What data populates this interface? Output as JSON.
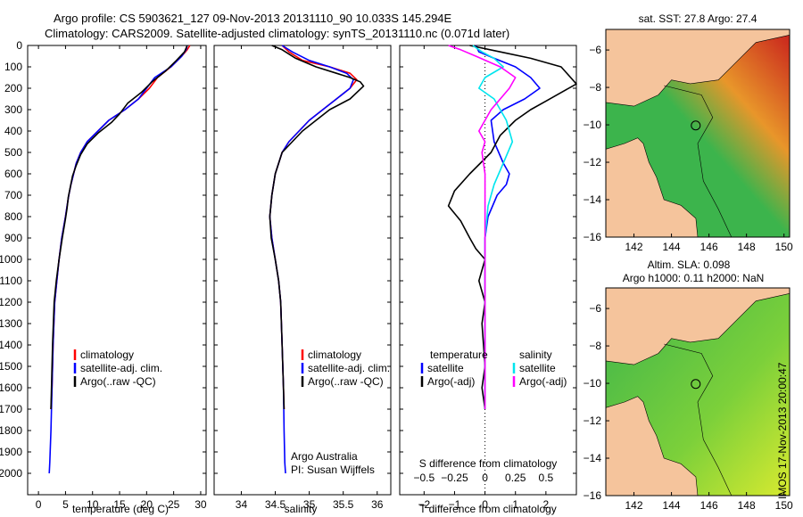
{
  "header": {
    "line1": "Argo profile: CS 5903621_127 09-Nov-2013 20131110_90 10.033S 145.294E",
    "line2": "Climatology: CARS2009. Satellite-adjusted climatology: synTS_20131110.nc (0.071d later)"
  },
  "side_label": "IMOS 17-Nov-2013 20:00:47",
  "colors": {
    "clim": "#ff0000",
    "sat": "#0000ff",
    "argo": "#000000",
    "s_sat": "#00e5ee",
    "s_argo": "#ff00ff",
    "land": "#f5c49c",
    "sea_hi": "#c8201c",
    "sea_mid": "#e8962a",
    "sea_lo": "#3cb44c",
    "sla_lo": "#3cb44c",
    "sla_hi": "#d8ea30"
  },
  "chart_data": [
    {
      "id": "temperature",
      "type": "line",
      "xlabel": "temperature (deg C)",
      "xlim": [
        -2,
        31
      ],
      "xticks": [
        0,
        5,
        10,
        15,
        20,
        25,
        30
      ],
      "xticklabels": [
        "0",
        "5",
        "10",
        "15",
        "20",
        "25",
        "30"
      ],
      "ylim": [
        0,
        2100
      ],
      "yticks": [
        0,
        100,
        200,
        300,
        400,
        500,
        600,
        700,
        800,
        900,
        1000,
        1100,
        1200,
        1300,
        1400,
        1500,
        1600,
        1700,
        1800,
        1900,
        2000
      ],
      "yticklabels": [
        "0",
        "100",
        "200",
        "300",
        "400",
        "500",
        "600",
        "700",
        "800",
        "900",
        "1000",
        "1100",
        "1200",
        "1300",
        "1400",
        "1500",
        "1600",
        "1700",
        "1800",
        "1900",
        "2000"
      ],
      "legend": [
        "climatology",
        "satellite-adj. clim.",
        "Argo(..raw -QC)"
      ],
      "series": [
        {
          "name": "climatology",
          "color": "#ff0000",
          "x": [
            28.0,
            27.5,
            26.5,
            24.5,
            22.0,
            20.5,
            18.5,
            16.0,
            13.0,
            11.0,
            9.0,
            7.8,
            7.0,
            6.5,
            6.0,
            5.6,
            5.3,
            5.0,
            4.3,
            3.8,
            3.4,
            3.0,
            2.7,
            2.5,
            2.3
          ],
          "y": [
            0,
            20,
            50,
            100,
            150,
            200,
            250,
            300,
            350,
            400,
            450,
            500,
            550,
            600,
            650,
            700,
            750,
            800,
            900,
            1000,
            1100,
            1200,
            1400,
            1600,
            1700
          ]
        },
        {
          "name": "satellite-adj. clim.",
          "color": "#0000ff",
          "x": [
            27.5,
            27.3,
            26.5,
            24.5,
            21.5,
            20.0,
            18.5,
            16.0,
            13.0,
            11.0,
            9.0,
            7.8,
            7.0,
            6.5,
            6.0,
            5.6,
            5.3,
            5.0,
            4.3,
            3.8,
            3.4,
            3.0,
            2.7,
            2.5,
            2.3,
            2.1,
            2.0
          ],
          "y": [
            0,
            20,
            50,
            100,
            150,
            200,
            250,
            300,
            350,
            400,
            450,
            500,
            550,
            600,
            650,
            700,
            750,
            800,
            900,
            1000,
            1100,
            1200,
            1400,
            1600,
            1800,
            1950,
            2000
          ]
        },
        {
          "name": "Argo(..raw -QC)",
          "color": "#000000",
          "x": [
            27.5,
            27.0,
            25.5,
            23.5,
            21.0,
            19.0,
            16.5,
            15.0,
            13.5,
            11.0,
            9.0,
            7.8,
            7.0,
            6.3,
            5.9,
            5.5,
            5.3,
            5.0,
            4.4,
            3.8,
            3.3,
            2.9,
            2.6,
            2.4,
            2.3
          ],
          "y": [
            0,
            30,
            70,
            120,
            170,
            220,
            270,
            320,
            360,
            410,
            460,
            510,
            560,
            610,
            660,
            710,
            760,
            810,
            900,
            1000,
            1100,
            1200,
            1400,
            1600,
            1700
          ]
        }
      ]
    },
    {
      "id": "salinity",
      "type": "line",
      "xlabel": "salinity",
      "xlim": [
        33.6,
        36.2
      ],
      "xticks": [
        34,
        34.5,
        35,
        35.5,
        36
      ],
      "xticklabels": [
        "34",
        "34.5",
        "35",
        "35.5",
        "36"
      ],
      "ylim": [
        0,
        2100
      ],
      "legend": [
        "climatology",
        "satellite-adj. clim.",
        "Argo(..raw -QC)"
      ],
      "annotation": [
        "Argo Australia",
        "PI: Susan Wijffels"
      ],
      "series": [
        {
          "name": "climatology",
          "color": "#ff0000",
          "x": [
            34.6,
            34.7,
            34.9,
            35.3,
            35.6,
            35.7,
            35.6,
            35.4,
            35.2,
            35.0,
            34.85,
            34.7,
            34.6,
            34.5,
            34.45,
            34.42,
            34.45,
            34.5,
            34.55,
            34.58,
            34.6,
            34.62,
            34.63
          ],
          "y": [
            0,
            30,
            70,
            100,
            130,
            160,
            200,
            250,
            300,
            350,
            400,
            450,
            500,
            600,
            700,
            800,
            900,
            1000,
            1100,
            1200,
            1400,
            1600,
            1700
          ]
        },
        {
          "name": "satellite-adj. clim.",
          "color": "#0000ff",
          "x": [
            34.6,
            34.75,
            35.0,
            35.3,
            35.55,
            35.65,
            35.6,
            35.4,
            35.2,
            35.0,
            34.85,
            34.7,
            34.6,
            34.5,
            34.45,
            34.42,
            34.45,
            34.5,
            34.55,
            34.58,
            34.6,
            34.62,
            34.63,
            34.64,
            34.65
          ],
          "y": [
            0,
            30,
            70,
            100,
            130,
            160,
            200,
            250,
            300,
            350,
            400,
            450,
            500,
            600,
            700,
            800,
            900,
            1000,
            1100,
            1200,
            1400,
            1600,
            1800,
            1950,
            2000
          ]
        },
        {
          "name": "Argo(..raw -QC)",
          "color": "#000000",
          "x": [
            34.45,
            34.6,
            34.8,
            35.1,
            35.4,
            35.6,
            35.75,
            35.8,
            35.6,
            35.3,
            35.1,
            34.9,
            34.75,
            34.6,
            34.5,
            34.45,
            34.42,
            34.44,
            34.5,
            34.55,
            34.58,
            34.6,
            34.62,
            34.63
          ],
          "y": [
            0,
            20,
            60,
            100,
            130,
            150,
            170,
            190,
            250,
            300,
            350,
            400,
            450,
            500,
            600,
            700,
            800,
            900,
            1000,
            1100,
            1200,
            1400,
            1600,
            1700
          ]
        }
      ]
    },
    {
      "id": "difference",
      "type": "line",
      "xlabel": "T difference from climatology",
      "xlabel_top": "S difference from climatology",
      "xlim": [
        -2.8,
        3.0
      ],
      "xticks": [
        -2,
        -1,
        0,
        1,
        2
      ],
      "xticklabels": [
        "−2",
        "−1",
        "0",
        "1",
        "2"
      ],
      "sticks": [
        -2,
        -1,
        0,
        1,
        2
      ],
      "sticklabels": [
        "−0.5",
        "−0.25",
        "0",
        "0.25",
        "0.5"
      ],
      "ylim": [
        0,
        2100
      ],
      "legend_temperature": {
        "title": "temperature",
        "items": [
          "satellite",
          "Argo(-adj)"
        ]
      },
      "legend_salinity": {
        "title": "salinity",
        "items": [
          "satellite",
          "Argo(-adj)"
        ]
      },
      "series": [
        {
          "name": "T satellite",
          "color": "#0000ff",
          "x": [
            -0.3,
            -0.2,
            0.3,
            1.0,
            1.5,
            1.8,
            1.3,
            0.6,
            0.2,
            0.3,
            0.6,
            0.8,
            0.7,
            0.4,
            0.1,
            0.0,
            0.0,
            0.0,
            0.0,
            0.0
          ],
          "y": [
            0,
            30,
            60,
            100,
            150,
            200,
            250,
            300,
            350,
            450,
            550,
            600,
            650,
            700,
            800,
            900,
            1000,
            1200,
            1400,
            1700
          ]
        },
        {
          "name": "T Argo(-adj)",
          "color": "#000000",
          "x": [
            -0.5,
            0.5,
            1.5,
            2.5,
            3.0,
            2.5,
            2.0,
            1.5,
            1.0,
            0.5,
            0.2,
            -0.5,
            -1.0,
            -1.2,
            -0.8,
            -0.5,
            -0.3,
            0.0,
            -0.2,
            0.0,
            -0.1,
            0.0,
            -0.1,
            0.0
          ],
          "y": [
            0,
            30,
            60,
            100,
            180,
            220,
            260,
            300,
            350,
            420,
            500,
            600,
            680,
            750,
            820,
            900,
            950,
            1000,
            1100,
            1200,
            1300,
            1500,
            1600,
            1700
          ]
        },
        {
          "name": "S satellite",
          "color": "#00e5ee",
          "x": [
            -0.4,
            -0.1,
            0.3,
            0.6,
            0.0,
            -0.2,
            0.3,
            0.5,
            0.7,
            0.9,
            0.6,
            0.3,
            0.1,
            0.0,
            0.0,
            0.0
          ],
          "y": [
            0,
            30,
            60,
            100,
            150,
            200,
            250,
            300,
            350,
            450,
            550,
            650,
            750,
            900,
            1200,
            1700
          ]
        },
        {
          "name": "S Argo(-adj)",
          "color": "#ff00ff",
          "x": [
            -1.2,
            -0.8,
            -0.3,
            0.5,
            1.0,
            0.8,
            0.5,
            0.2,
            0.0,
            -0.2,
            0.0,
            -0.1,
            0.0,
            0.0,
            0.0
          ],
          "y": [
            0,
            20,
            50,
            100,
            150,
            200,
            250,
            300,
            350,
            400,
            450,
            500,
            600,
            800,
            1700
          ]
        }
      ]
    },
    {
      "id": "sst_map",
      "type": "heatmap",
      "title": "sat. SST: 27.8 Argo: 27.4",
      "xlim": [
        140.5,
        150.3
      ],
      "ylim": [
        -16,
        -4.9
      ],
      "xticks": [
        142,
        144,
        146,
        148,
        150
      ],
      "xticklabels": [
        "142",
        "144",
        "146",
        "148",
        "150"
      ],
      "yticks": [
        -6,
        -8,
        -10,
        -12,
        -14,
        -16
      ],
      "yticklabels": [
        "−6",
        "−8",
        "−10",
        "−12",
        "−14",
        "−16"
      ],
      "marker": {
        "lon": 145.294,
        "lat": -10.033
      }
    },
    {
      "id": "sla_map",
      "type": "heatmap",
      "title_line1": "Altim. SLA: 0.098",
      "title_line2": "Argo h1000: 0.11 h2000: NaN",
      "xlim": [
        140.5,
        150.3
      ],
      "ylim": [
        -16,
        -4.9
      ],
      "xticks": [
        142,
        144,
        146,
        148,
        150
      ],
      "xticklabels": [
        "142",
        "144",
        "146",
        "148",
        "150"
      ],
      "yticks": [
        -6,
        -8,
        -10,
        -12,
        -14,
        -16
      ],
      "yticklabels": [
        "−6",
        "−8",
        "−10",
        "−12",
        "−14",
        "−16"
      ],
      "marker": {
        "lon": 145.294,
        "lat": -10.033
      }
    }
  ]
}
